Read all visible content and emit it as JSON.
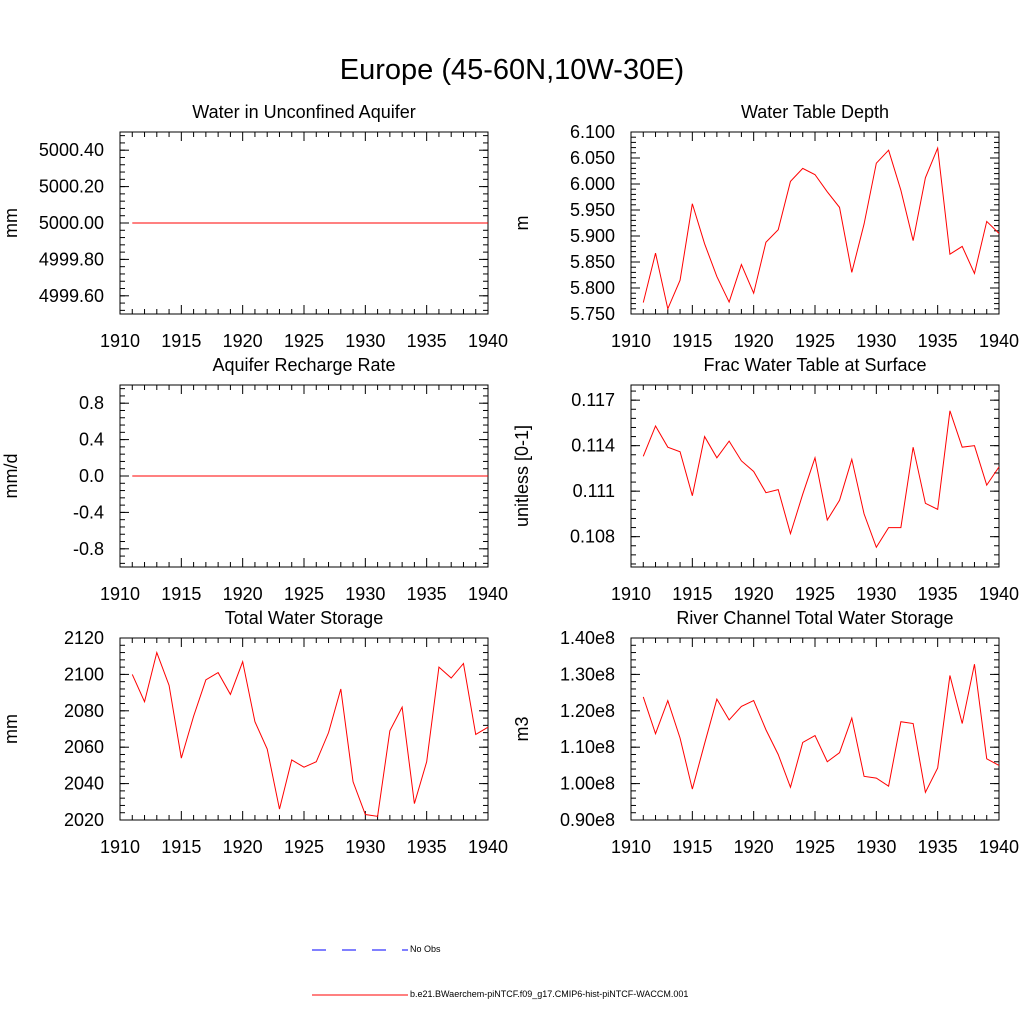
{
  "page": {
    "title": "Europe (45-60N,10W-30E)"
  },
  "legend": {
    "obs_label": "No Obs",
    "model_label": "b.e21.BWaerchem-piNTCF.f09_g17.CMIP6-hist-piNTCF-WACCM.001",
    "obs_color": "#0000ff",
    "model_color": "#ff0000"
  },
  "chart_data": [
    {
      "type": "line",
      "title": "Water in Unconfined Aquifer",
      "ylabel": "mm",
      "xlim": [
        1910,
        1940
      ],
      "ylim": [
        4999.5,
        5000.5
      ],
      "xticks": [
        1910,
        1915,
        1920,
        1925,
        1930,
        1935,
        1940
      ],
      "yticks": [
        4999.6,
        4999.8,
        5000.0,
        5000.2,
        5000.4
      ],
      "ytick_labels": [
        "4999.60",
        "4999.80",
        "5000.00",
        "5000.20",
        "5000.40"
      ],
      "series": [
        {
          "color": "#ff0000",
          "x": [
            1911,
            1912,
            1913,
            1914,
            1915,
            1916,
            1917,
            1918,
            1919,
            1920,
            1921,
            1922,
            1923,
            1924,
            1925,
            1926,
            1927,
            1928,
            1929,
            1930,
            1931,
            1932,
            1933,
            1934,
            1935,
            1936,
            1937,
            1938,
            1939,
            1940
          ],
          "y": [
            5000,
            5000,
            5000,
            5000,
            5000,
            5000,
            5000,
            5000,
            5000,
            5000,
            5000,
            5000,
            5000,
            5000,
            5000,
            5000,
            5000,
            5000,
            5000,
            5000,
            5000,
            5000,
            5000,
            5000,
            5000,
            5000,
            5000,
            5000,
            5000,
            5000
          ]
        }
      ]
    },
    {
      "type": "line",
      "title": "Water Table Depth",
      "ylabel": "m",
      "xlim": [
        1910,
        1940
      ],
      "ylim": [
        5.75,
        6.1
      ],
      "xticks": [
        1910,
        1915,
        1920,
        1925,
        1930,
        1935,
        1940
      ],
      "yticks": [
        5.75,
        5.8,
        5.85,
        5.9,
        5.95,
        6.0,
        6.05,
        6.1
      ],
      "ytick_labels": [
        "5.750",
        "5.800",
        "5.850",
        "5.900",
        "5.950",
        "6.000",
        "6.050",
        "6.100"
      ],
      "series": [
        {
          "color": "#ff0000",
          "x": [
            1911,
            1912,
            1913,
            1914,
            1915,
            1916,
            1917,
            1918,
            1919,
            1920,
            1921,
            1922,
            1923,
            1924,
            1925,
            1926,
            1927,
            1928,
            1929,
            1930,
            1931,
            1932,
            1933,
            1934,
            1935,
            1936,
            1937,
            1938,
            1939,
            1940
          ],
          "y": [
            5.772,
            5.867,
            5.76,
            5.815,
            5.962,
            5.885,
            5.822,
            5.773,
            5.845,
            5.79,
            5.888,
            5.912,
            6.005,
            6.03,
            6.018,
            5.985,
            5.955,
            5.83,
            5.923,
            6.04,
            6.065,
            5.988,
            5.891,
            6.012,
            6.069,
            5.865,
            5.88,
            5.828,
            5.928,
            5.905
          ]
        }
      ]
    },
    {
      "type": "line",
      "title": "Aquifer Recharge Rate",
      "ylabel": "mm/d",
      "xlim": [
        1910,
        1940
      ],
      "ylim": [
        -1,
        1
      ],
      "xticks": [
        1910,
        1915,
        1920,
        1925,
        1930,
        1935,
        1940
      ],
      "yticks": [
        -0.8,
        -0.4,
        0.0,
        0.4,
        0.8
      ],
      "ytick_labels": [
        "-0.8",
        "-0.4",
        "0.0",
        "0.4",
        "0.8"
      ],
      "series": [
        {
          "color": "#ff0000",
          "x": [
            1911,
            1912,
            1913,
            1914,
            1915,
            1916,
            1917,
            1918,
            1919,
            1920,
            1921,
            1922,
            1923,
            1924,
            1925,
            1926,
            1927,
            1928,
            1929,
            1930,
            1931,
            1932,
            1933,
            1934,
            1935,
            1936,
            1937,
            1938,
            1939,
            1940
          ],
          "y": [
            0,
            0,
            0,
            0,
            0,
            0,
            0,
            0,
            0,
            0,
            0,
            0,
            0,
            0,
            0,
            0,
            0,
            0,
            0,
            0,
            0,
            0,
            0,
            0,
            0,
            0,
            0,
            0,
            0,
            0
          ]
        }
      ]
    },
    {
      "type": "line",
      "title": "Frac Water Table at Surface",
      "ylabel": "unitless [0-1]",
      "xlim": [
        1910,
        1940
      ],
      "ylim": [
        0.106,
        0.118
      ],
      "xticks": [
        1910,
        1915,
        1920,
        1925,
        1930,
        1935,
        1940
      ],
      "yticks": [
        0.108,
        0.111,
        0.114,
        0.117
      ],
      "ytick_labels": [
        "0.108",
        "0.111",
        "0.114",
        "0.117"
      ],
      "series": [
        {
          "color": "#ff0000",
          "x": [
            1911,
            1912,
            1913,
            1914,
            1915,
            1916,
            1917,
            1918,
            1919,
            1920,
            1921,
            1922,
            1923,
            1924,
            1925,
            1926,
            1927,
            1928,
            1929,
            1930,
            1931,
            1932,
            1933,
            1934,
            1935,
            1936,
            1937,
            1938,
            1939,
            1940
          ],
          "y": [
            0.1133,
            0.1153,
            0.1139,
            0.1136,
            0.1107,
            0.1146,
            0.1132,
            0.1143,
            0.113,
            0.1123,
            0.1109,
            0.1111,
            0.1082,
            0.1108,
            0.1132,
            0.1091,
            0.1104,
            0.1131,
            0.1095,
            0.1073,
            0.1086,
            0.1086,
            0.1139,
            0.1102,
            0.1098,
            0.1163,
            0.1139,
            0.114,
            0.1114,
            0.1126
          ]
        }
      ]
    },
    {
      "type": "line",
      "title": "Total Water Storage",
      "ylabel": "mm",
      "xlim": [
        1910,
        1940
      ],
      "ylim": [
        2020,
        2120
      ],
      "xticks": [
        1910,
        1915,
        1920,
        1925,
        1930,
        1935,
        1940
      ],
      "yticks": [
        2020,
        2040,
        2060,
        2080,
        2100,
        2120
      ],
      "ytick_labels": [
        "2020",
        "2040",
        "2060",
        "2080",
        "2100",
        "2120"
      ],
      "series": [
        {
          "color": "#ff0000",
          "x": [
            1911,
            1912,
            1913,
            1914,
            1915,
            1916,
            1917,
            1918,
            1919,
            1920,
            1921,
            1922,
            1923,
            1924,
            1925,
            1926,
            1927,
            1928,
            1929,
            1930,
            1931,
            1932,
            1933,
            1934,
            1935,
            1936,
            1937,
            1938,
            1939,
            1940
          ],
          "y": [
            2100,
            2085,
            2112,
            2094,
            2054,
            2077,
            2097,
            2101,
            2089,
            2107,
            2074,
            2059,
            2026,
            2053,
            2049,
            2052,
            2068,
            2092,
            2041,
            2023,
            2022,
            2069,
            2082,
            2029,
            2052,
            2104,
            2098,
            2106,
            2067,
            2071
          ]
        }
      ]
    },
    {
      "type": "line",
      "title": "River Channel Total Water Storage",
      "ylabel": "m3",
      "xlim": [
        1910,
        1940
      ],
      "ylim": [
        90000000.0,
        140000000.0
      ],
      "xticks": [
        1910,
        1915,
        1920,
        1925,
        1930,
        1935,
        1940
      ],
      "yticks": [
        90000000.0,
        100000000.0,
        110000000.0,
        120000000.0,
        130000000.0,
        140000000.0
      ],
      "ytick_labels": [
        "0.90e8",
        "1.00e8",
        "1.10e8",
        "1.20e8",
        "1.30e8",
        "1.40e8"
      ],
      "series": [
        {
          "color": "#ff0000",
          "x": [
            1911,
            1912,
            1913,
            1914,
            1915,
            1916,
            1917,
            1918,
            1919,
            1920,
            1921,
            1922,
            1923,
            1924,
            1925,
            1926,
            1927,
            1928,
            1929,
            1930,
            1931,
            1932,
            1933,
            1934,
            1935,
            1936,
            1937,
            1938,
            1939,
            1940
          ],
          "y": [
            123800000.0,
            113700000.0,
            122800000.0,
            112500000.0,
            98500000.0,
            111000000.0,
            123200000.0,
            117500000.0,
            121200000.0,
            122800000.0,
            114800000.0,
            108000000.0,
            99000000.0,
            111300000.0,
            113200000.0,
            106000000.0,
            108500000.0,
            118000000.0,
            102000000.0,
            101500000.0,
            99300000.0,
            117000000.0,
            116500000.0,
            97600000.0,
            104300000.0,
            129700000.0,
            116500000.0,
            132800000.0,
            106800000.0,
            105000000.0
          ]
        }
      ]
    }
  ]
}
